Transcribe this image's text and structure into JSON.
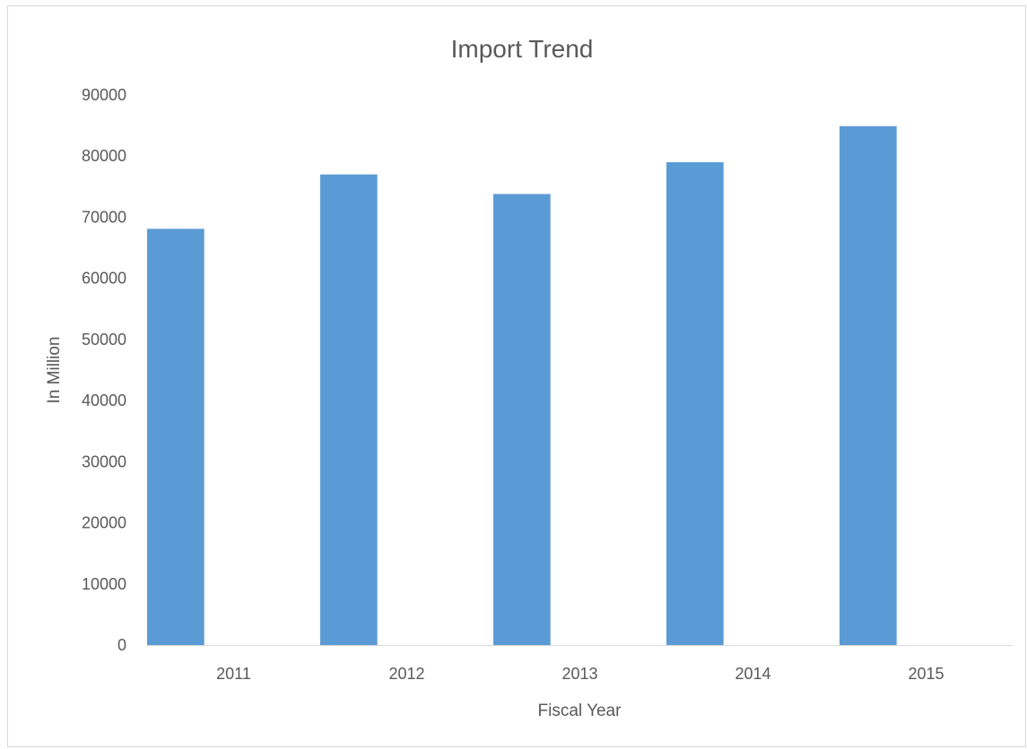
{
  "chart_data": {
    "type": "bar",
    "title": "Import Trend",
    "xlabel": "Fiscal Year",
    "ylabel": "In Million",
    "categories": [
      "2011",
      "2012",
      "2013",
      "2014",
      "2015"
    ],
    "values": [
      68100,
      77000,
      73800,
      79000,
      84900
    ],
    "ylim": [
      0,
      90000
    ],
    "yticks": [
      0,
      10000,
      20000,
      30000,
      40000,
      50000,
      60000,
      70000,
      80000,
      90000
    ],
    "grid": false,
    "legend": "none",
    "bar_color": "#5b9bd5",
    "text_color": "#595959",
    "axis_color": "#d9d9d9"
  }
}
